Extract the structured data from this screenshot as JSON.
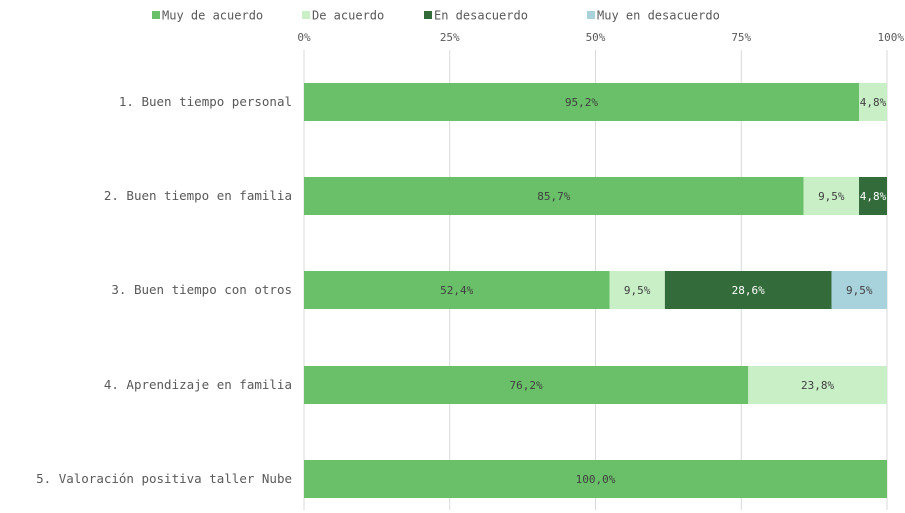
{
  "chart_data": {
    "type": "bar",
    "orientation": "horizontal",
    "stacked": true,
    "percent": true,
    "categories": [
      "1. Buen tiempo personal",
      "2. Buen tiempo en familia",
      "3. Buen tiempo con otros",
      "4. Aprendizaje en familia",
      "5. Valoración positiva taller Nube"
    ],
    "series": [
      {
        "name": "Muy de acuerdo",
        "color": "#6abf69",
        "values": [
          95.2,
          85.7,
          52.4,
          76.2,
          100.0
        ],
        "labels": [
          "95,2%",
          "85,7%",
          "52,4%",
          "76,2%",
          "100,0%"
        ]
      },
      {
        "name": "De acuerdo",
        "color": "#c9efc7",
        "values": [
          4.8,
          9.5,
          9.5,
          23.8,
          0
        ],
        "labels": [
          "4,8%",
          "9,5%",
          "9,5%",
          "23,8%",
          ""
        ]
      },
      {
        "name": "En desacuerdo",
        "color": "#336b3b",
        "values": [
          0,
          4.8,
          28.6,
          0,
          0
        ],
        "labels": [
          "",
          "4,8%",
          "28,6%",
          "",
          ""
        ]
      },
      {
        "name": "Muy en desacuerdo",
        "color": "#a8d2dc",
        "values": [
          0,
          0,
          9.5,
          0,
          0
        ],
        "labels": [
          "",
          "",
          "9,5%",
          "",
          ""
        ]
      }
    ],
    "xlim": [
      0,
      100
    ],
    "x_ticks": [
      0,
      25,
      50,
      75,
      100
    ],
    "x_tick_labels": [
      "0%",
      "25%",
      "50%",
      "75%",
      "100%"
    ],
    "xaxis_position": "top",
    "grid": "vertical",
    "legend_position": "top"
  }
}
